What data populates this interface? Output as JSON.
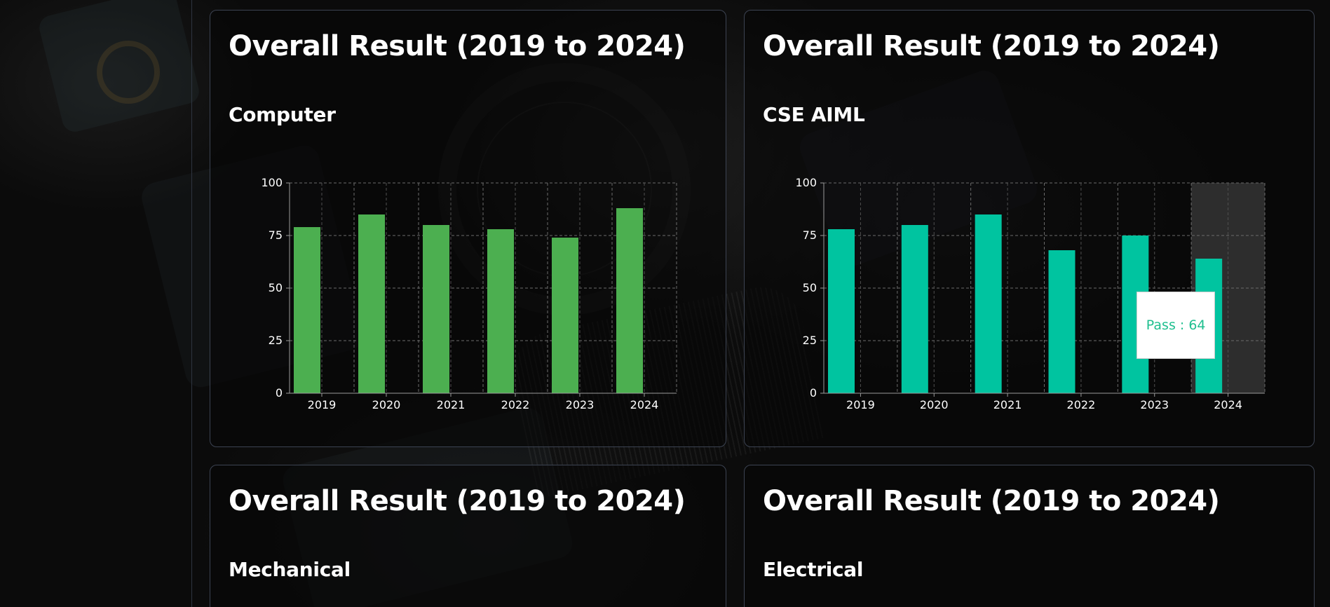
{
  "cards": [
    {
      "title": "Overall Result (2019 to 2024)",
      "subtitle": "Computer"
    },
    {
      "title": "Overall Result (2019 to 2024)",
      "subtitle": "CSE AIML"
    },
    {
      "title": "Overall Result (2019 to 2024)",
      "subtitle": "Mechanical"
    },
    {
      "title": "Overall Result (2019 to 2024)",
      "subtitle": "Electrical"
    }
  ],
  "tooltip": {
    "text": "Pass : 64"
  },
  "colors": {
    "computer_bar": "#4caf50",
    "aiml_bar": "#00c4a0",
    "tooltip_text": "#1fbf8f",
    "highlight": "#3a3a3a"
  },
  "chart_data": [
    {
      "type": "bar",
      "title": "Computer",
      "categories": [
        "2019",
        "2020",
        "2021",
        "2022",
        "2023",
        "2024"
      ],
      "series": [
        {
          "values": [
            79,
            85,
            80,
            78,
            74,
            88
          ]
        }
      ],
      "ylim": [
        0,
        100
      ],
      "yticks": [
        0,
        25,
        50,
        75,
        100
      ],
      "grid": true
    },
    {
      "type": "bar",
      "title": "CSE AIML",
      "categories": [
        "2019",
        "2020",
        "2021",
        "2022",
        "2023",
        "2024"
      ],
      "series": [
        {
          "name": "Pass",
          "values": [
            78,
            80,
            85,
            68,
            75,
            64
          ]
        }
      ],
      "ylim": [
        0,
        100
      ],
      "yticks": [
        0,
        25,
        50,
        75,
        100
      ],
      "grid": true,
      "highlighted_category": "2024"
    }
  ]
}
